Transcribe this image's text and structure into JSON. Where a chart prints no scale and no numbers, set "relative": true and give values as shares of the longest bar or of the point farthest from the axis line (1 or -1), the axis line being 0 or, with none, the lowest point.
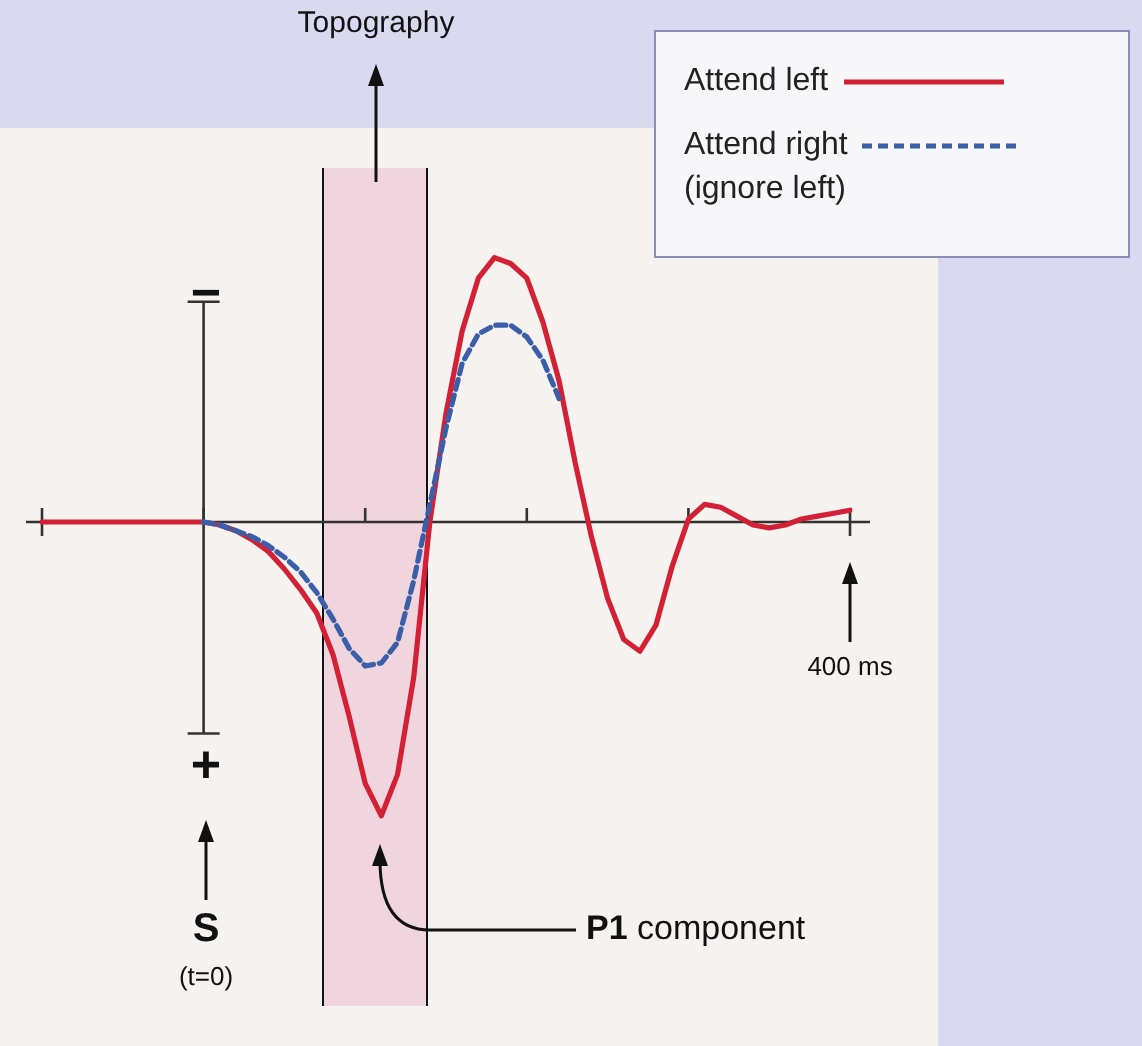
{
  "chart_data": {
    "type": "line",
    "relative": true,
    "categories": [
      null,
      null,
      null,
      null,
      null,
      null,
      null,
      null,
      null,
      null,
      null,
      null,
      null,
      null,
      null,
      null,
      null,
      null,
      null,
      null,
      null,
      null,
      null,
      null,
      null,
      null,
      null,
      null,
      null,
      null,
      null,
      null,
      null,
      null,
      null,
      null,
      null,
      null,
      null,
      null,
      null,
      null,
      null,
      null,
      null,
      null,
      null,
      null,
      null,
      null,
      null
    ],
    "series": [
      {
        "name": "Attend left",
        "color": "#d42035",
        "line_style": "solid",
        "values": [
          0,
          0,
          0,
          0,
          0,
          0,
          0,
          0,
          0,
          0,
          0,
          -0.01,
          -0.03,
          -0.06,
          -0.1,
          -0.16,
          -0.23,
          -0.31,
          -0.45,
          -0.66,
          -0.89,
          -1,
          -0.86,
          -0.53,
          0,
          0.37,
          0.65,
          0.83,
          0.9,
          0.88,
          0.83,
          0.68,
          0.48,
          0.2,
          -0.05,
          -0.26,
          -0.4,
          -0.44,
          -0.35,
          -0.15,
          0.01,
          0.06,
          0.05,
          0.02,
          -0.01,
          -0.02,
          -0.01,
          0.01,
          0.02,
          0.03,
          0.04
        ]
      },
      {
        "name": "Attend right (ignore left)",
        "color": "#3a5fa8",
        "line_style": "dashed",
        "values": [
          null,
          null,
          null,
          null,
          null,
          null,
          null,
          null,
          null,
          null,
          0,
          -0.01,
          -0.03,
          -0.05,
          -0.08,
          -0.12,
          -0.17,
          -0.24,
          -0.33,
          -0.43,
          -0.49,
          -0.48,
          -0.41,
          -0.2,
          0.06,
          0.32,
          0.54,
          0.64,
          0.67,
          0.67,
          0.63,
          0.55,
          0.42,
          null,
          null,
          null,
          null,
          null,
          null,
          null,
          null,
          null,
          null,
          null,
          null,
          null,
          null,
          null,
          null,
          null,
          null
        ]
      }
    ],
    "marker": "none",
    "legend": "top right",
    "annotations": [
      "Topography",
      "−",
      "+",
      "S (t=0)",
      "400 ms",
      "P1 component"
    ]
  }
}
